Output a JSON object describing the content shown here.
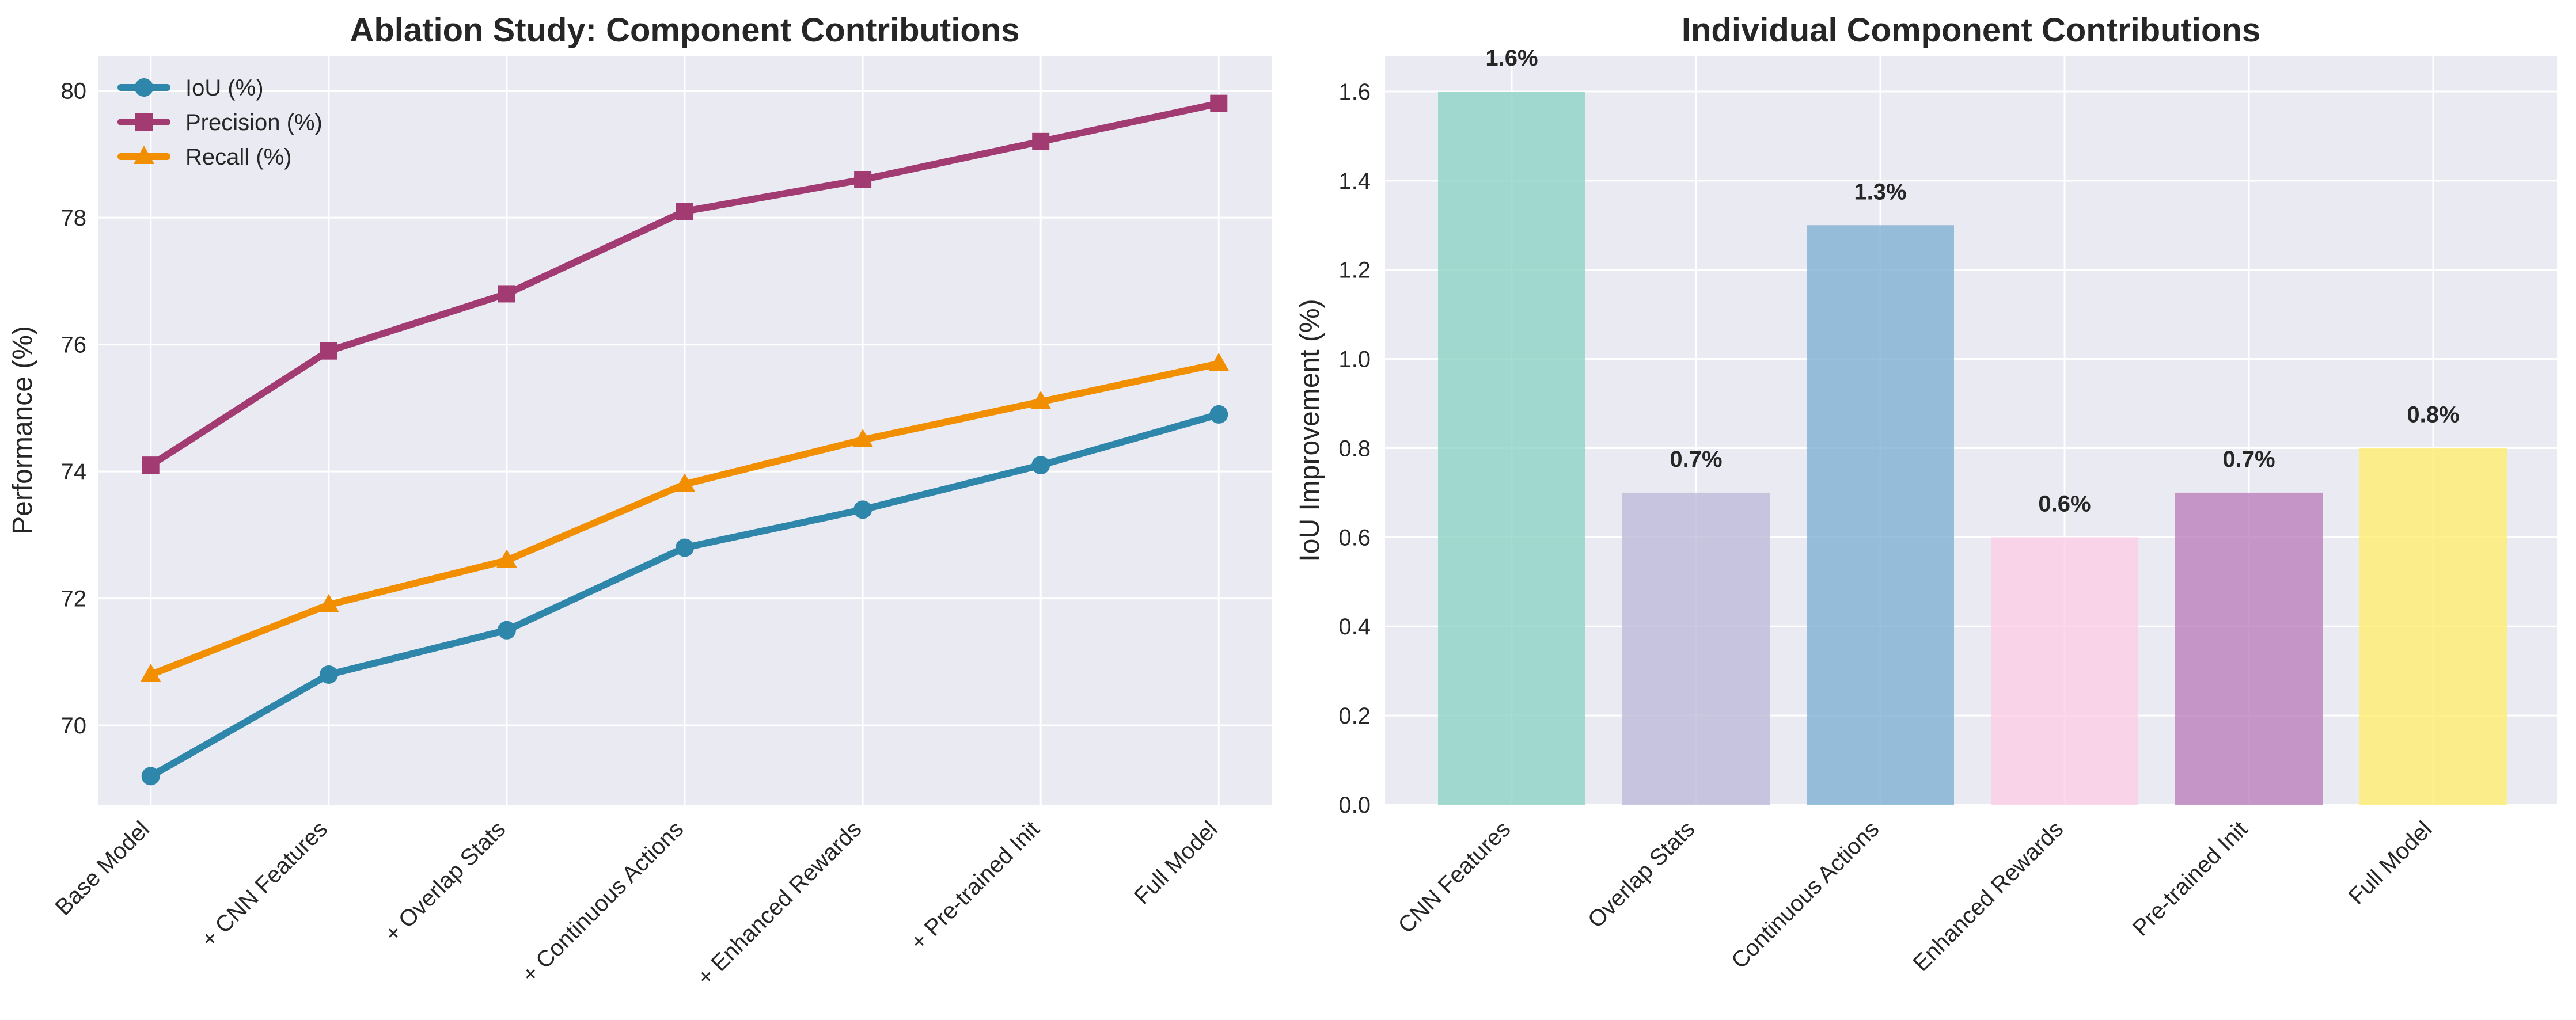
{
  "chart_data": [
    {
      "type": "line",
      "title": "Ablation Study: Component Contributions",
      "xlabel": "",
      "ylabel": "Performance (%)",
      "categories": [
        "Base Model",
        "+ CNN Features",
        "+ Overlap Stats",
        "+ Continuous Actions",
        "+ Enhanced Rewards",
        "+ Pre-trained Init",
        "Full Model"
      ],
      "ylim": [
        68.75,
        80.55
      ],
      "yticks": [
        70,
        72,
        74,
        76,
        78,
        80
      ],
      "grid": true,
      "legend_position": "top-left",
      "series": [
        {
          "name": "IoU (%)",
          "values": [
            69.2,
            70.8,
            71.5,
            72.8,
            73.4,
            74.1,
            74.9
          ],
          "color": "#2e86ab",
          "marker": "circle"
        },
        {
          "name": "Precision (%)",
          "values": [
            74.1,
            75.9,
            76.8,
            78.1,
            78.6,
            79.2,
            79.8
          ],
          "color": "#a23b72",
          "marker": "square"
        },
        {
          "name": "Recall (%)",
          "values": [
            70.8,
            71.9,
            72.6,
            73.8,
            74.5,
            75.1,
            75.7
          ],
          "color": "#f18f01",
          "marker": "triangle"
        }
      ]
    },
    {
      "type": "bar",
      "title": "Individual Component Contributions",
      "xlabel": "",
      "ylabel": "IoU Improvement (%)",
      "categories": [
        "CNN Features",
        "Overlap Stats",
        "Continuous Actions",
        "Enhanced Rewards",
        "Pre-trained Init",
        "Full Model"
      ],
      "values": [
        1.6,
        0.7,
        1.3,
        0.6,
        0.7,
        0.8
      ],
      "data_labels": [
        "1.6%",
        "0.7%",
        "1.3%",
        "0.6%",
        "0.7%",
        "0.8%"
      ],
      "colors": [
        "#8dd3c7",
        "#bebada",
        "#80b1d3",
        "#fccde5",
        "#bc80bd",
        "#ffed6f"
      ],
      "ylim": [
        0,
        1.68
      ],
      "yticks": [
        "0.0",
        "0.2",
        "0.4",
        "0.6",
        "0.8",
        "1.0",
        "1.2",
        "1.4",
        "1.6"
      ],
      "grid": true
    }
  ]
}
